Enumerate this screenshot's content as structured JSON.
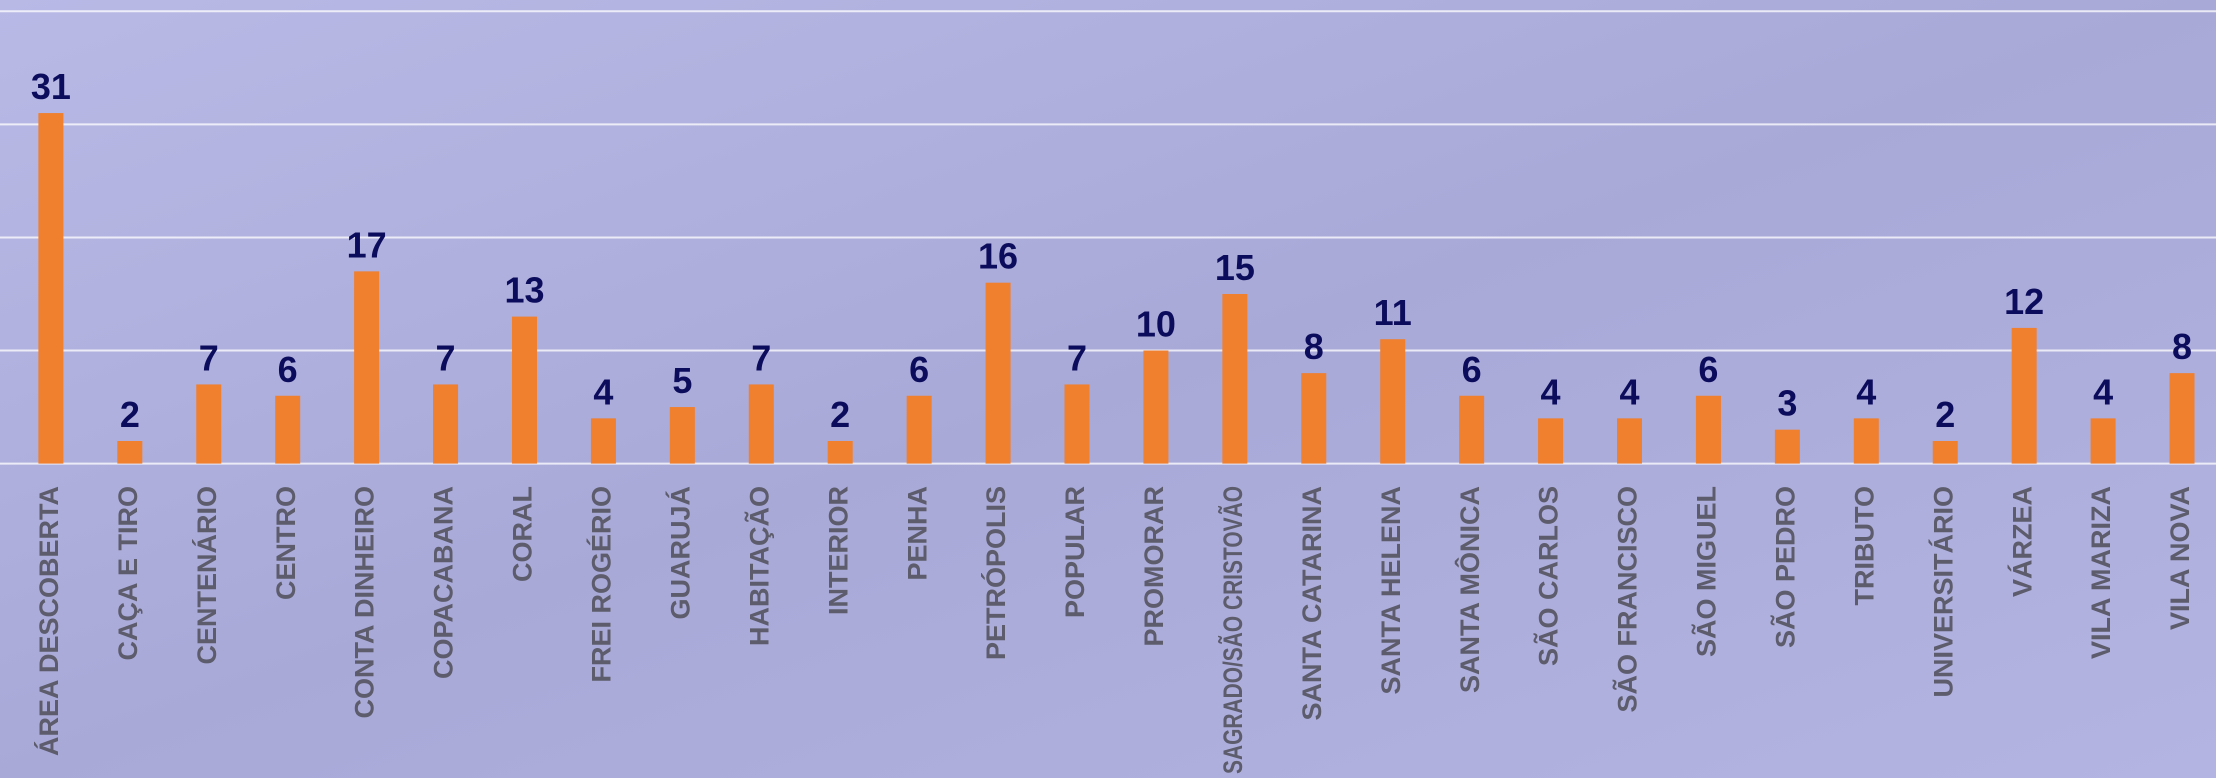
{
  "chart_data": {
    "type": "bar",
    "categories": [
      "ÁREA DESCOBERTA",
      "CAÇA E TIRO",
      "CENTENÁRIO",
      "CENTRO",
      "CONTA DINHEIRO",
      "COPACABANA",
      "CORAL",
      "FREI ROGÉRIO",
      "GUARUJÁ",
      "HABITAÇÃO",
      "INTERIOR",
      "PENHA",
      "PETRÓPOLIS",
      "POPULAR",
      "PROMORAR",
      "SAGRADO/SÃO CRISTOVÃO",
      "SANTA CATARINA",
      "SANTA HELENA",
      "SANTA MÔNICA",
      "SÃO CARLOS",
      "SÃO FRANCISCO",
      "SÃO MIGUEL",
      "SÃO PEDRO",
      "TRIBUTO",
      "UNIVERSITÁRIO",
      "VÁRZEA",
      "VILA MARIZA",
      "VILA NOVA"
    ],
    "values": [
      31,
      2,
      7,
      6,
      17,
      7,
      13,
      4,
      5,
      7,
      2,
      6,
      16,
      7,
      10,
      15,
      8,
      11,
      6,
      4,
      4,
      6,
      3,
      4,
      2,
      12,
      4,
      8
    ],
    "color": "#f07f2e",
    "ylim": [
      0,
      40
    ],
    "yticks": [
      0,
      10,
      20,
      30,
      40
    ],
    "grid": true
  }
}
